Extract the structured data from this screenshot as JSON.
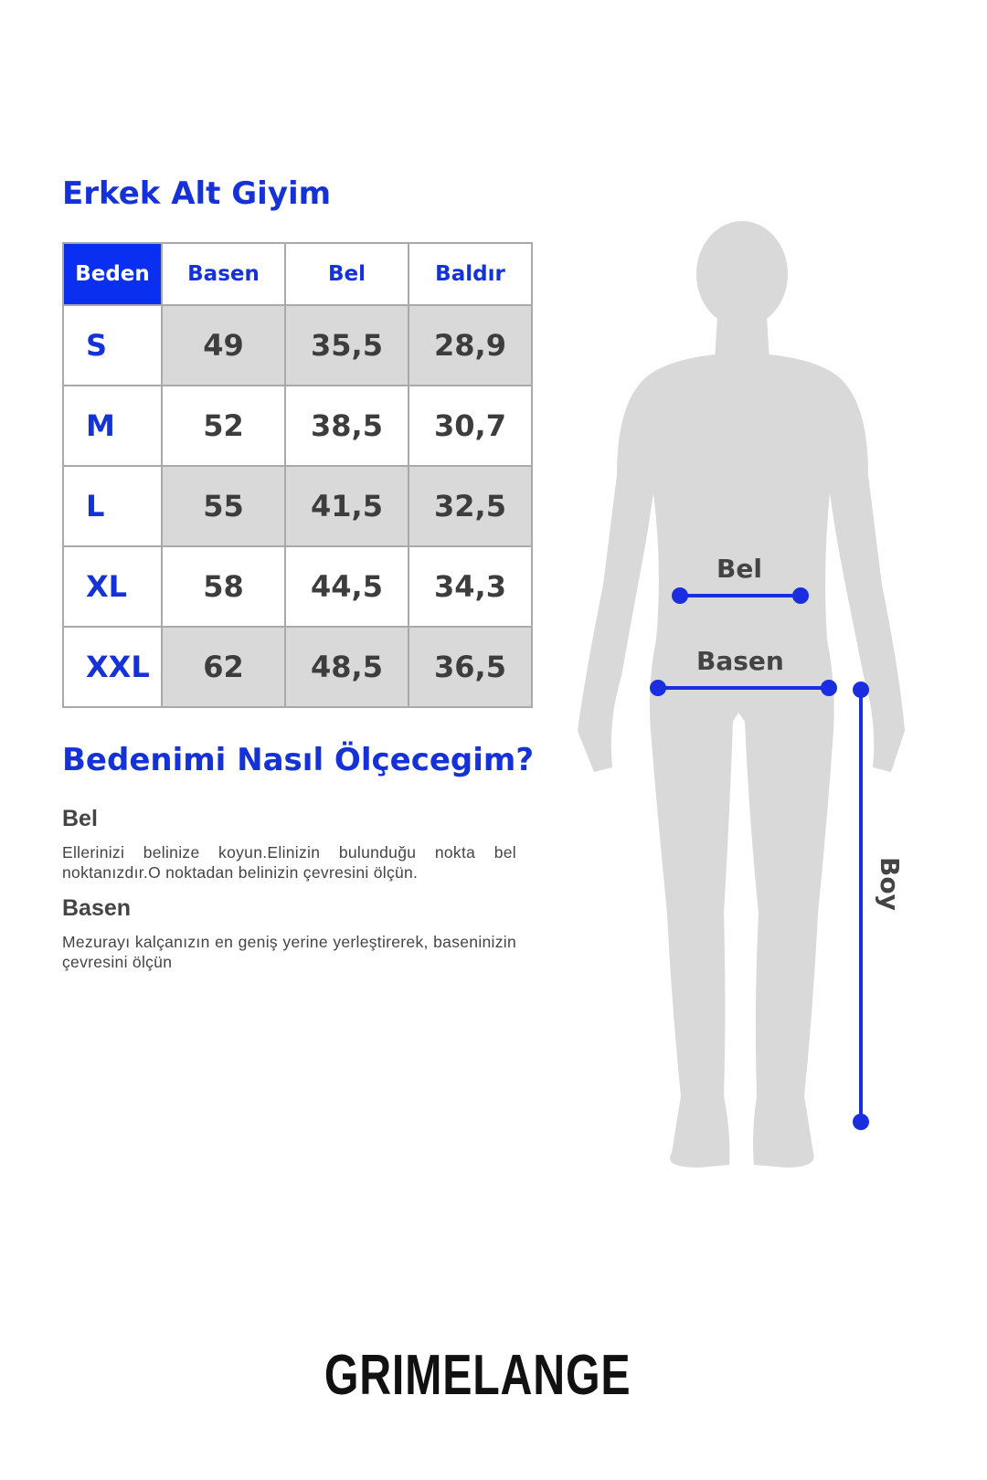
{
  "title": "Erkek Alt Giyim",
  "table": {
    "headers": [
      "Beden",
      "Basen",
      "Bel",
      "Baldır"
    ],
    "rows": [
      {
        "size": "S",
        "values": [
          "49",
          "35,5",
          "28,9"
        ]
      },
      {
        "size": "M",
        "values": [
          "52",
          "38,5",
          "30,7"
        ]
      },
      {
        "size": "L",
        "values": [
          "55",
          "41,5",
          "32,5"
        ]
      },
      {
        "size": "XL",
        "values": [
          "58",
          "44,5",
          "34,3"
        ]
      },
      {
        "size": "XXL",
        "values": [
          "62",
          "48,5",
          "36,5"
        ]
      }
    ]
  },
  "guide": {
    "title": "Bedenimi Nasıl Ölçecegim?",
    "bel_title": "Bel",
    "bel_text": "Ellerinizi belinize koyun.Elinizin bulunduğu nokta bel noktanızdır.O noktadan belinizin çevresini ölçün.",
    "basen_title": "Basen",
    "basen_text": "Mezurayı kalçanızın en geniş yerine yerleştirerek, baseninizin çevresini ölçün"
  },
  "figure": {
    "bel_label": "Bel",
    "basen_label": "Basen",
    "boy_label": "Boy"
  },
  "brand": "GRIMELANGE",
  "colors": {
    "accent": "#1432d8",
    "header_fill": "#0a2ff0",
    "silhouette": "#d9d9d9",
    "measure_line": "#1a2ee0"
  }
}
